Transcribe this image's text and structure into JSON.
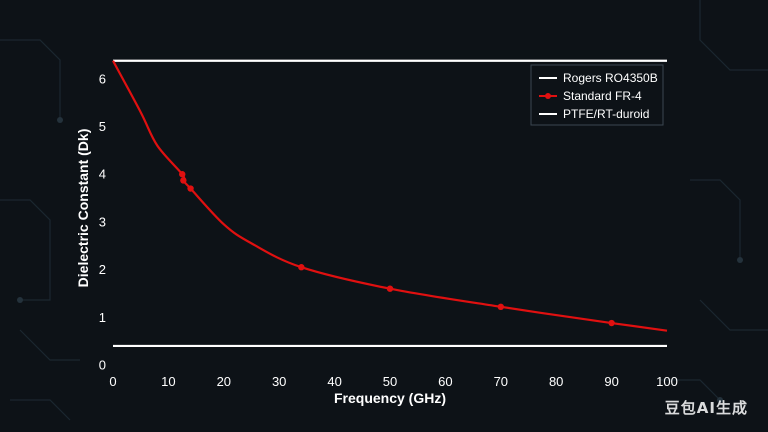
{
  "chart_data": {
    "type": "line",
    "title": "",
    "xlabel": "Frequency (GHz)",
    "ylabel": "Dielectric Constant (Dk)",
    "xlim": [
      0,
      100
    ],
    "ylim": [
      0,
      6.5
    ],
    "x_ticks": [
      "0",
      "10",
      "20",
      "30",
      "40",
      "50",
      "60",
      "70",
      "80",
      "90",
      "100"
    ],
    "y_ticks": [
      "0",
      "1",
      "2",
      "3",
      "4",
      "5",
      "6"
    ],
    "grid": false,
    "legend_position": "top-right",
    "series": [
      {
        "name": "Rogers RO4350B",
        "color": "#ffffff",
        "marker": false,
        "x": [
          0,
          100
        ],
        "y": [
          6.38,
          6.38
        ]
      },
      {
        "name": "Standard FR-4",
        "color": "#e01010",
        "marker": true,
        "x": [
          0,
          5,
          8,
          12.5,
          12.7,
          14,
          20,
          25,
          34,
          50,
          70,
          90,
          100
        ],
        "y": [
          6.38,
          5.3,
          4.6,
          4.0,
          3.87,
          3.7,
          2.95,
          2.55,
          2.05,
          1.6,
          1.22,
          0.88,
          0.72
        ],
        "marker_x": [
          12.5,
          12.7,
          14,
          34,
          50,
          70,
          90
        ],
        "marker_y": [
          4.0,
          3.87,
          3.7,
          2.05,
          1.6,
          1.22,
          0.88
        ]
      },
      {
        "name": "PTFE/RT-duroid",
        "color": "#ffffff",
        "marker": false,
        "x": [
          0,
          100
        ],
        "y": [
          0.4,
          0.4
        ]
      }
    ]
  },
  "watermark": "豆包AI生成"
}
